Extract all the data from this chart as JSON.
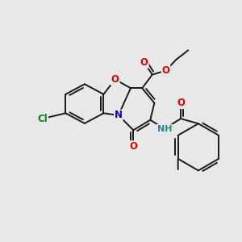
{
  "bg": "#e8e8e8",
  "bond_color": "#1a1a1a",
  "O_color": "#dd0000",
  "N_color": "#0000cc",
  "Cl_color": "#008800",
  "NH_color": "#228888",
  "xlim": [
    -3.0,
    3.5
  ],
  "ylim": [
    -2.8,
    2.2
  ]
}
